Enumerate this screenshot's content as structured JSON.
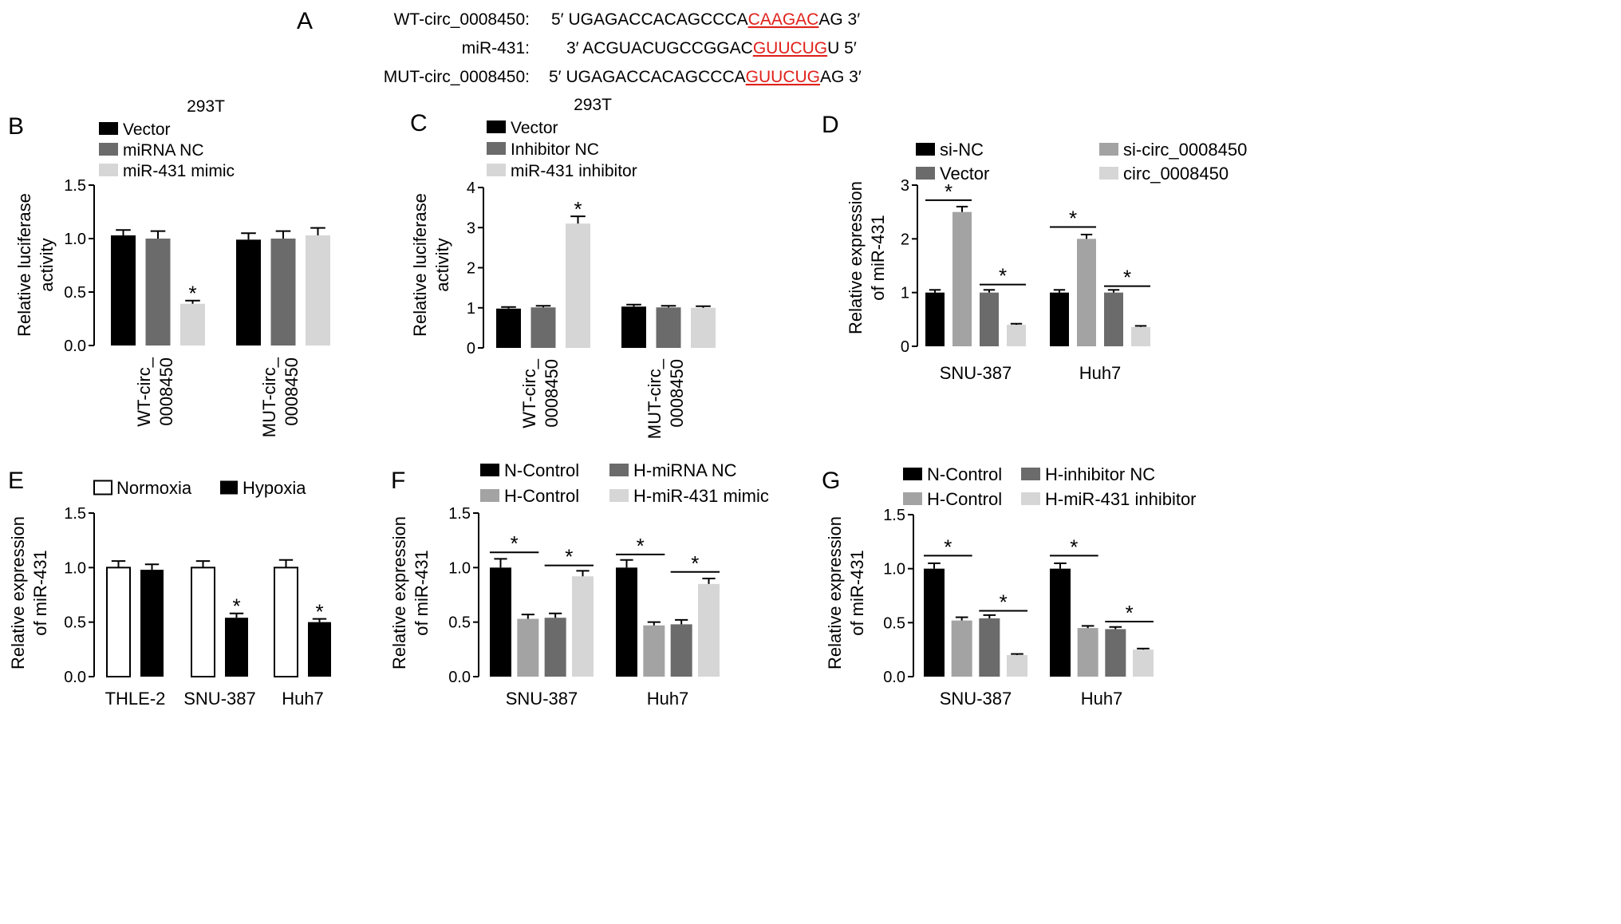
{
  "panel_a": {
    "letter": "A",
    "rows": [
      {
        "label": "WT-circ_0008450:",
        "prefix": "5′ UGAGACCACAGCCCA",
        "site": "CAAGAC",
        "suffix": "AG 3′"
      },
      {
        "label": "miR-431:",
        "prefix": "3′ ACGUACUGCCGGAC",
        "site": "GUUCUG",
        "suffix": "U 5′"
      },
      {
        "label": "MUT-circ_0008450:",
        "prefix": "5′ UGAGACCACAGCCCA",
        "site": "GUUCUG",
        "suffix": "AG 3′"
      }
    ]
  },
  "colors": {
    "black": "#000000",
    "dark_gray": "#6b6b6b",
    "mid_gray": "#a3a3a3",
    "light_gray": "#d6d6d6",
    "white": "#ffffff",
    "red": "#e0211b"
  },
  "chart_data": [
    {
      "panel": "B",
      "type": "bar",
      "title": "293T",
      "ylabel": [
        "Relative luciferase",
        "activity"
      ],
      "ylim": [
        0,
        1.5
      ],
      "yticks": [
        0.0,
        0.5,
        1.0,
        1.5
      ],
      "ytick_labels": [
        "0.0",
        "0.5",
        "1.0",
        "1.5"
      ],
      "categories": [
        [
          "WT-circ_",
          "0008450"
        ],
        [
          "MUT-circ_",
          "0008450"
        ]
      ],
      "rotated_categories": true,
      "series": [
        {
          "name": "Vector",
          "color": "#000000",
          "values": [
            1.03,
            0.99
          ],
          "errors": [
            0.05,
            0.06
          ]
        },
        {
          "name": "miRNA NC",
          "color": "#6b6b6b",
          "values": [
            1.0,
            1.0
          ],
          "errors": [
            0.07,
            0.07
          ]
        },
        {
          "name": "miR-431 mimic",
          "color": "#d6d6d6",
          "values": [
            0.39,
            1.03
          ],
          "errors": [
            0.03,
            0.07
          ]
        }
      ],
      "asterisks": [
        {
          "category": 0,
          "series": 2,
          "label": "*"
        }
      ]
    },
    {
      "panel": "C",
      "type": "bar",
      "title": "293T",
      "ylabel": [
        "Relative luciferase",
        "activity"
      ],
      "ylim": [
        0,
        4
      ],
      "yticks": [
        0,
        1,
        2,
        3,
        4
      ],
      "ytick_labels": [
        "0",
        "1",
        "2",
        "3",
        "4"
      ],
      "categories": [
        [
          "WT-circ_",
          "0008450"
        ],
        [
          "MUT-circ_",
          "0008450"
        ]
      ],
      "rotated_categories": true,
      "series": [
        {
          "name": "Vector",
          "color": "#000000",
          "values": [
            0.98,
            1.03
          ],
          "errors": [
            0.04,
            0.05
          ]
        },
        {
          "name": "Inhibitor NC",
          "color": "#6b6b6b",
          "values": [
            1.01,
            1.01
          ],
          "errors": [
            0.04,
            0.04
          ]
        },
        {
          "name": "miR-431 inhibitor",
          "color": "#d6d6d6",
          "values": [
            3.1,
            1.0
          ],
          "errors": [
            0.18,
            0.04
          ]
        }
      ],
      "asterisks": [
        {
          "category": 0,
          "series": 2,
          "label": "*"
        }
      ]
    },
    {
      "panel": "D",
      "type": "bar",
      "title": "",
      "ylabel": [
        "Relative expression",
        "of miR-431"
      ],
      "ylim": [
        0,
        3
      ],
      "yticks": [
        0,
        1,
        2,
        3
      ],
      "ytick_labels": [
        "0",
        "1",
        "2",
        "3"
      ],
      "categories": [
        [
          "SNU-387"
        ],
        [
          "Huh7"
        ]
      ],
      "rotated_categories": false,
      "series": [
        {
          "name": "si-NC",
          "color": "#000000",
          "values": [
            1.0,
            1.0
          ],
          "errors": [
            0.05,
            0.05
          ]
        },
        {
          "name": "si-circ_0008450",
          "color": "#a3a3a3",
          "values": [
            2.5,
            2.0
          ],
          "errors": [
            0.1,
            0.08
          ]
        },
        {
          "name": "Vector",
          "color": "#6b6b6b",
          "values": [
            1.0,
            1.0
          ],
          "errors": [
            0.05,
            0.05
          ]
        },
        {
          "name": "circ_0008450",
          "color": "#d6d6d6",
          "values": [
            0.4,
            0.36
          ],
          "errors": [
            0.02,
            0.02
          ]
        }
      ],
      "brackets": [
        {
          "category": 0,
          "from": 0,
          "to": 1,
          "y": 2.72,
          "label": "*"
        },
        {
          "category": 0,
          "from": 2,
          "to": 3,
          "y": 1.15,
          "label": "*"
        },
        {
          "category": 1,
          "from": 0,
          "to": 1,
          "y": 2.22,
          "label": "*"
        },
        {
          "category": 1,
          "from": 2,
          "to": 3,
          "y": 1.12,
          "label": "*"
        }
      ]
    },
    {
      "panel": "E",
      "type": "bar",
      "title": "",
      "ylabel": [
        "Relative expression",
        "of miR-431"
      ],
      "ylim": [
        0,
        1.5
      ],
      "yticks": [
        0.0,
        0.5,
        1.0,
        1.5
      ],
      "ytick_labels": [
        "0.0",
        "0.5",
        "1.0",
        "1.5"
      ],
      "categories": [
        [
          "THLE-2"
        ],
        [
          "SNU-387"
        ],
        [
          "Huh7"
        ]
      ],
      "rotated_categories": false,
      "series": [
        {
          "name": "Normoxia",
          "color": "#ffffff",
          "values": [
            1.0,
            1.0,
            1.0
          ],
          "errors": [
            0.06,
            0.06,
            0.07
          ]
        },
        {
          "name": "Hypoxia",
          "color": "#000000",
          "values": [
            0.98,
            0.54,
            0.5
          ],
          "errors": [
            0.05,
            0.04,
            0.03
          ]
        }
      ],
      "asterisks": [
        {
          "category": 1,
          "series": 1,
          "label": "*"
        },
        {
          "category": 2,
          "series": 1,
          "label": "*"
        }
      ]
    },
    {
      "panel": "F",
      "type": "bar",
      "title": "",
      "ylabel": [
        "Relative expression",
        "of miR-431"
      ],
      "ylim": [
        0,
        1.5
      ],
      "yticks": [
        0.0,
        0.5,
        1.0,
        1.5
      ],
      "ytick_labels": [
        "0.0",
        "0.5",
        "1.0",
        "1.5"
      ],
      "categories": [
        [
          "SNU-387"
        ],
        [
          "Huh7"
        ]
      ],
      "rotated_categories": false,
      "series": [
        {
          "name": "N-Control",
          "color": "#000000",
          "values": [
            1.0,
            1.0
          ],
          "errors": [
            0.08,
            0.07
          ]
        },
        {
          "name": "H-Control",
          "color": "#a3a3a3",
          "values": [
            0.53,
            0.47
          ],
          "errors": [
            0.04,
            0.03
          ]
        },
        {
          "name": "H-miRNA NC",
          "color": "#6b6b6b",
          "values": [
            0.54,
            0.48
          ],
          "errors": [
            0.04,
            0.04
          ]
        },
        {
          "name": "H-miR-431 mimic",
          "color": "#d6d6d6",
          "values": [
            0.92,
            0.85
          ],
          "errors": [
            0.05,
            0.05
          ]
        }
      ],
      "brackets": [
        {
          "category": 0,
          "from": 0,
          "to": 1,
          "y": 1.14,
          "label": "*"
        },
        {
          "category": 0,
          "from": 2,
          "to": 3,
          "y": 1.02,
          "label": "*"
        },
        {
          "category": 1,
          "from": 0,
          "to": 1,
          "y": 1.12,
          "label": "*"
        },
        {
          "category": 1,
          "from": 2,
          "to": 3,
          "y": 0.96,
          "label": "*"
        }
      ]
    },
    {
      "panel": "G",
      "type": "bar",
      "title": "",
      "ylabel": [
        "Relative expression",
        "of miR-431"
      ],
      "ylim": [
        0,
        1.5
      ],
      "yticks": [
        0.0,
        0.5,
        1.0,
        1.5
      ],
      "ytick_labels": [
        "0.0",
        "0.5",
        "1.0",
        "1.5"
      ],
      "categories": [
        [
          "SNU-387"
        ],
        [
          "Huh7"
        ]
      ],
      "rotated_categories": false,
      "series": [
        {
          "name": "N-Control",
          "color": "#000000",
          "values": [
            1.0,
            1.0
          ],
          "errors": [
            0.05,
            0.05
          ]
        },
        {
          "name": "H-Control",
          "color": "#a3a3a3",
          "values": [
            0.52,
            0.45
          ],
          "errors": [
            0.03,
            0.02
          ]
        },
        {
          "name": "H-inhibitor NC",
          "color": "#6b6b6b",
          "values": [
            0.54,
            0.44
          ],
          "errors": [
            0.03,
            0.02
          ]
        },
        {
          "name": "H-miR-431 inhibitor",
          "color": "#d6d6d6",
          "values": [
            0.2,
            0.25
          ],
          "errors": [
            0.01,
            0.01
          ]
        }
      ],
      "brackets": [
        {
          "category": 0,
          "from": 0,
          "to": 1,
          "y": 1.12,
          "label": "*"
        },
        {
          "category": 0,
          "from": 2,
          "to": 3,
          "y": 0.61,
          "label": "*"
        },
        {
          "category": 1,
          "from": 0,
          "to": 1,
          "y": 1.12,
          "label": "*"
        },
        {
          "category": 1,
          "from": 2,
          "to": 3,
          "y": 0.51,
          "label": "*"
        }
      ]
    }
  ]
}
